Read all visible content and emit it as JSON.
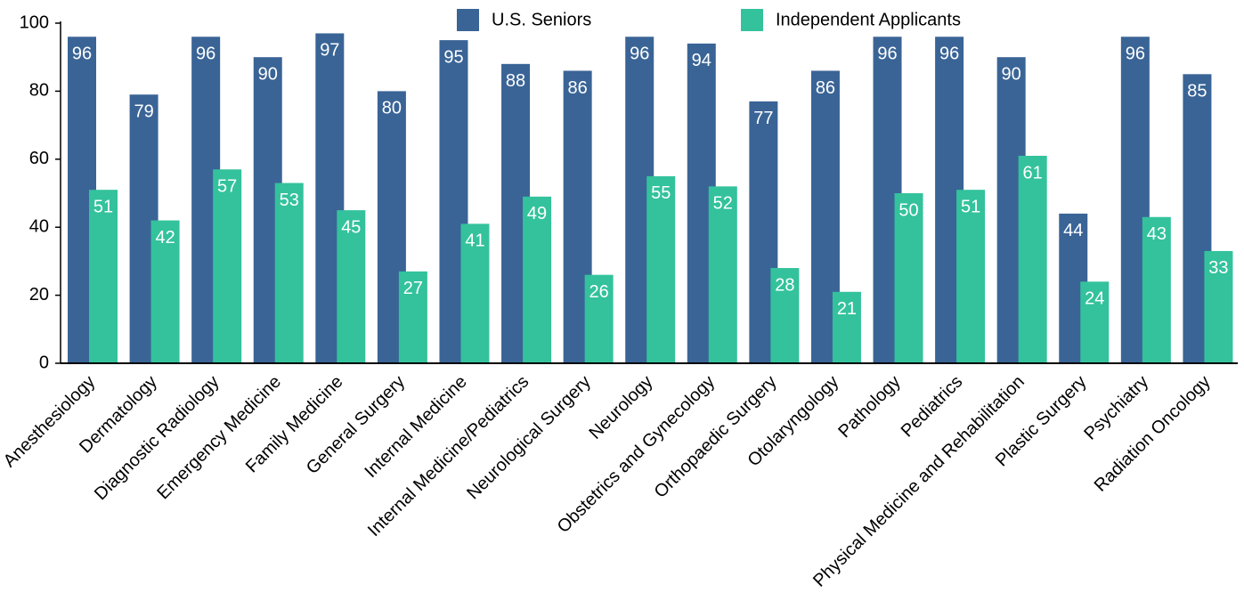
{
  "chart_data": {
    "type": "bar",
    "categories": [
      "Anesthesiology",
      "Dermatology",
      "Diagnostic Radiology",
      "Emergency Medicine",
      "Family Medicine",
      "General Surgery",
      "Internal Medicine",
      "Internal Medicine/Pediatrics",
      "Neurological Surgery",
      "Neurology",
      "Obstetrics and Gynecology",
      "Orthopaedic Surgery",
      "Otolaryngology",
      "Pathology",
      "Pediatrics",
      "Physical Medicine and Rehabilitation",
      "Plastic Surgery",
      "Psychiatry",
      "Radiation Oncology"
    ],
    "series": [
      {
        "name": "U.S. Seniors",
        "color": "#3a6496",
        "values": [
          96,
          79,
          96,
          90,
          97,
          80,
          95,
          88,
          86,
          96,
          94,
          77,
          86,
          96,
          96,
          90,
          44,
          96,
          85
        ]
      },
      {
        "name": "Independent Applicants",
        "color": "#33c29c",
        "values": [
          51,
          42,
          57,
          53,
          45,
          27,
          41,
          49,
          26,
          55,
          52,
          28,
          21,
          50,
          51,
          61,
          24,
          43,
          33
        ]
      }
    ],
    "ylim": [
      0,
      100
    ],
    "yticks": [
      0,
      20,
      40,
      60,
      80,
      100
    ],
    "grid": false,
    "legend": "top"
  }
}
